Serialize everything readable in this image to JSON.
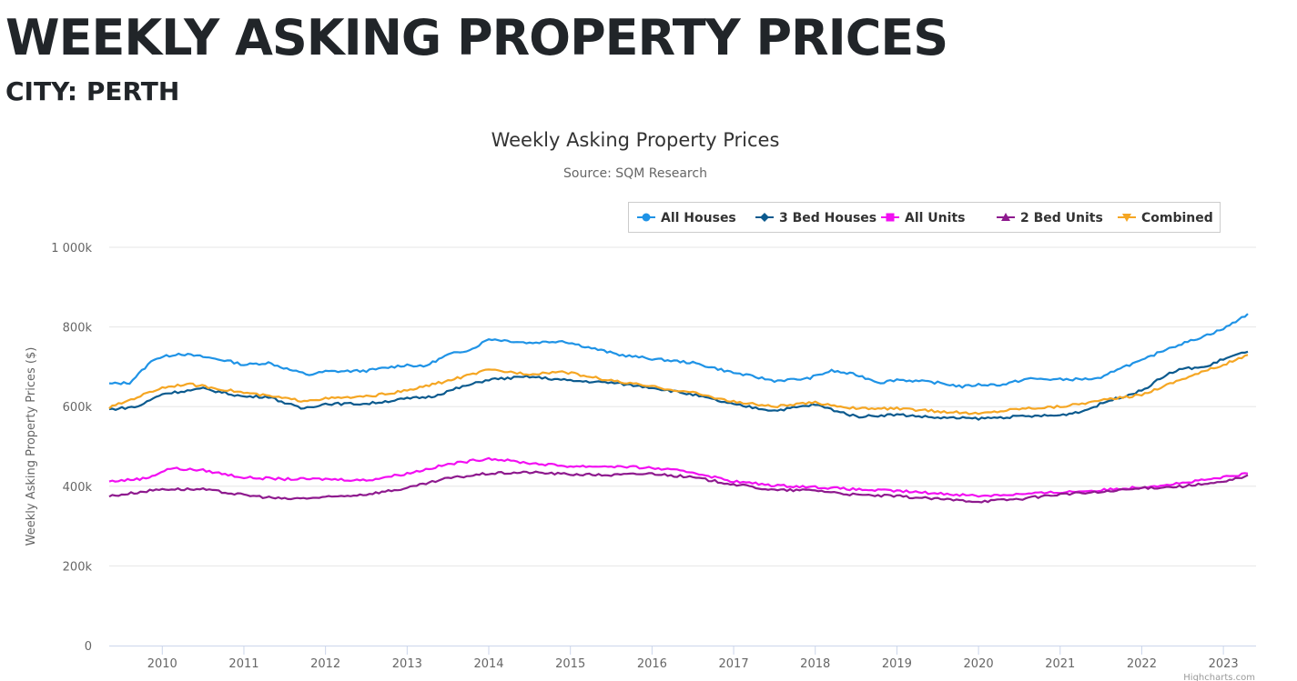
{
  "header": {
    "title": "WEEKLY ASKING PROPERTY PRICES",
    "subtitle": "CITY: PERTH"
  },
  "chart_data": {
    "type": "line",
    "title": "Weekly Asking Property Prices",
    "subtitle": "Source: SQM Research",
    "ylabel": "Weekly Asking Property Prices ($)",
    "xlabel": "",
    "xlim": [
      2009.35,
      2023.4
    ],
    "ylim": [
      0,
      1000000
    ],
    "yticks": [
      {
        "v": 0,
        "label": "0"
      },
      {
        "v": 200000,
        "label": "200k"
      },
      {
        "v": 400000,
        "label": "400k"
      },
      {
        "v": 600000,
        "label": "600k"
      },
      {
        "v": 800000,
        "label": "800k"
      },
      {
        "v": 1000000,
        "label": "1 000k"
      }
    ],
    "xticks": [
      "2010",
      "2011",
      "2012",
      "2013",
      "2014",
      "2015",
      "2016",
      "2017",
      "2018",
      "2019",
      "2020",
      "2021",
      "2022",
      "2023"
    ],
    "grid": true,
    "legend_position": "top-right",
    "credits": "Highcharts.com",
    "series": [
      {
        "name": "All Houses",
        "color": "#1f93e6",
        "marker": "circle",
        "points": [
          [
            2009.35,
            657
          ],
          [
            2009.6,
            660
          ],
          [
            2009.9,
            720
          ],
          [
            2010.2,
            733
          ],
          [
            2010.5,
            725
          ],
          [
            2010.8,
            715
          ],
          [
            2011.0,
            705
          ],
          [
            2011.3,
            710
          ],
          [
            2011.6,
            690
          ],
          [
            2011.8,
            680
          ],
          [
            2012.0,
            688
          ],
          [
            2012.5,
            690
          ],
          [
            2013.0,
            705
          ],
          [
            2013.2,
            700
          ],
          [
            2013.5,
            730
          ],
          [
            2013.8,
            745
          ],
          [
            2014.0,
            770
          ],
          [
            2014.5,
            760
          ],
          [
            2014.9,
            765
          ],
          [
            2015.3,
            745
          ],
          [
            2015.6,
            730
          ],
          [
            2016.0,
            720
          ],
          [
            2016.5,
            710
          ],
          [
            2017.0,
            685
          ],
          [
            2017.5,
            665
          ],
          [
            2017.9,
            670
          ],
          [
            2018.2,
            690
          ],
          [
            2018.5,
            680
          ],
          [
            2018.8,
            660
          ],
          [
            2019.0,
            668
          ],
          [
            2019.5,
            660
          ],
          [
            2019.8,
            650
          ],
          [
            2020.0,
            655
          ],
          [
            2020.3,
            655
          ],
          [
            2020.6,
            670
          ],
          [
            2021.0,
            668
          ],
          [
            2021.5,
            670
          ],
          [
            2021.7,
            695
          ],
          [
            2022.0,
            715
          ],
          [
            2022.3,
            745
          ],
          [
            2022.6,
            765
          ],
          [
            2023.0,
            795
          ],
          [
            2023.3,
            833
          ]
        ]
      },
      {
        "name": "3 Bed Houses",
        "color": "#0b5a8e",
        "marker": "diamond",
        "points": [
          [
            2009.35,
            593
          ],
          [
            2009.7,
            600
          ],
          [
            2010.0,
            632
          ],
          [
            2010.5,
            645
          ],
          [
            2011.0,
            625
          ],
          [
            2011.3,
            625
          ],
          [
            2011.7,
            595
          ],
          [
            2012.0,
            607
          ],
          [
            2012.5,
            607
          ],
          [
            2013.0,
            620
          ],
          [
            2013.3,
            625
          ],
          [
            2013.6,
            645
          ],
          [
            2014.0,
            668
          ],
          [
            2014.5,
            675
          ],
          [
            2015.0,
            665
          ],
          [
            2015.5,
            660
          ],
          [
            2016.0,
            648
          ],
          [
            2016.5,
            630
          ],
          [
            2017.0,
            605
          ],
          [
            2017.5,
            590
          ],
          [
            2018.0,
            605
          ],
          [
            2018.5,
            575
          ],
          [
            2019.0,
            580
          ],
          [
            2019.5,
            572
          ],
          [
            2020.0,
            570
          ],
          [
            2020.5,
            575
          ],
          [
            2021.0,
            578
          ],
          [
            2021.3,
            590
          ],
          [
            2021.6,
            615
          ],
          [
            2022.0,
            640
          ],
          [
            2022.3,
            680
          ],
          [
            2022.5,
            695
          ],
          [
            2022.8,
            700
          ],
          [
            2023.0,
            720
          ],
          [
            2023.3,
            738
          ]
        ]
      },
      {
        "name": "All Units",
        "color": "#f20ff2",
        "marker": "square",
        "points": [
          [
            2009.35,
            412
          ],
          [
            2009.8,
            420
          ],
          [
            2010.1,
            445
          ],
          [
            2010.5,
            440
          ],
          [
            2011.0,
            422
          ],
          [
            2011.5,
            418
          ],
          [
            2012.0,
            418
          ],
          [
            2012.5,
            415
          ],
          [
            2013.0,
            432
          ],
          [
            2013.5,
            455
          ],
          [
            2014.0,
            470
          ],
          [
            2014.5,
            458
          ],
          [
            2015.0,
            450
          ],
          [
            2015.5,
            450
          ],
          [
            2016.0,
            446
          ],
          [
            2016.5,
            435
          ],
          [
            2017.0,
            412
          ],
          [
            2017.5,
            402
          ],
          [
            2018.0,
            398
          ],
          [
            2018.5,
            392
          ],
          [
            2019.0,
            388
          ],
          [
            2019.5,
            382
          ],
          [
            2020.0,
            376
          ],
          [
            2020.5,
            380
          ],
          [
            2021.0,
            385
          ],
          [
            2021.5,
            390
          ],
          [
            2022.0,
            398
          ],
          [
            2022.5,
            408
          ],
          [
            2023.0,
            422
          ],
          [
            2023.3,
            432
          ]
        ]
      },
      {
        "name": "2 Bed Units",
        "color": "#8e1a8e",
        "marker": "triangle",
        "points": [
          [
            2009.35,
            375
          ],
          [
            2010.0,
            393
          ],
          [
            2010.5,
            392
          ],
          [
            2011.0,
            378
          ],
          [
            2011.5,
            368
          ],
          [
            2012.0,
            372
          ],
          [
            2012.5,
            380
          ],
          [
            2013.0,
            395
          ],
          [
            2013.5,
            420
          ],
          [
            2014.0,
            432
          ],
          [
            2014.5,
            435
          ],
          [
            2015.0,
            430
          ],
          [
            2015.5,
            428
          ],
          [
            2016.0,
            432
          ],
          [
            2016.5,
            422
          ],
          [
            2017.0,
            405
          ],
          [
            2017.5,
            390
          ],
          [
            2018.0,
            390
          ],
          [
            2018.5,
            378
          ],
          [
            2019.0,
            375
          ],
          [
            2019.5,
            368
          ],
          [
            2020.0,
            362
          ],
          [
            2020.5,
            368
          ],
          [
            2021.0,
            380
          ],
          [
            2021.5,
            385
          ],
          [
            2022.0,
            395
          ],
          [
            2022.5,
            400
          ],
          [
            2023.0,
            410
          ],
          [
            2023.3,
            428
          ]
        ]
      },
      {
        "name": "Combined",
        "color": "#f5a623",
        "marker": "triangle-down",
        "points": [
          [
            2009.35,
            597
          ],
          [
            2010.0,
            648
          ],
          [
            2010.3,
            657
          ],
          [
            2010.6,
            648
          ],
          [
            2011.0,
            635
          ],
          [
            2011.7,
            615
          ],
          [
            2012.0,
            620
          ],
          [
            2012.5,
            625
          ],
          [
            2013.0,
            640
          ],
          [
            2013.5,
            665
          ],
          [
            2014.0,
            692
          ],
          [
            2014.5,
            682
          ],
          [
            2014.9,
            688
          ],
          [
            2015.5,
            665
          ],
          [
            2016.0,
            650
          ],
          [
            2016.5,
            635
          ],
          [
            2017.0,
            612
          ],
          [
            2017.5,
            600
          ],
          [
            2018.0,
            610
          ],
          [
            2018.5,
            595
          ],
          [
            2019.0,
            595
          ],
          [
            2019.5,
            588
          ],
          [
            2020.0,
            582
          ],
          [
            2020.5,
            595
          ],
          [
            2021.0,
            600
          ],
          [
            2021.5,
            615
          ],
          [
            2022.0,
            630
          ],
          [
            2022.5,
            670
          ],
          [
            2023.0,
            705
          ],
          [
            2023.3,
            730
          ]
        ]
      }
    ],
    "units_note": "series point values in thousands of dollars"
  }
}
